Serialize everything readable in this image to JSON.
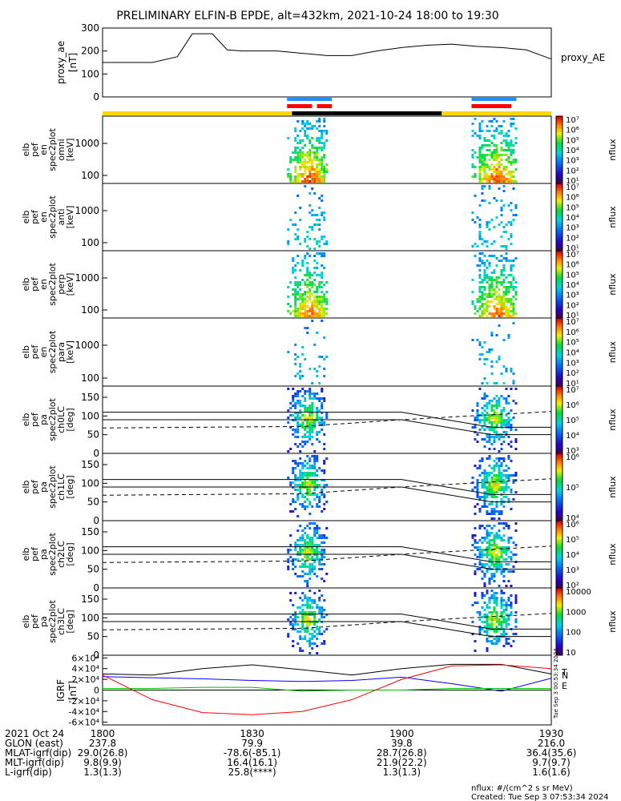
{
  "title": "PRELIMINARY ELFIN-B EPDE, alt=432km, 2021-10-24 18:00 to 19:30",
  "colors": {
    "orbit_yellow": "#f8d800",
    "orbit_black": "#000000",
    "bar_blue": "#1e90ff",
    "bar_red": "#ff0000",
    "trace_black": "#000000",
    "trace_blue": "#0000ff",
    "trace_red": "#ff0000",
    "trace_green": "#00c000"
  },
  "chart_data": [
    {
      "type": "line",
      "panel": "proxy_ae",
      "ylabel": "proxy_ae [nT]",
      "ylim": [
        0,
        300
      ],
      "yticks": [
        "0",
        "100",
        "200",
        "300"
      ],
      "grid": false,
      "series": [
        {
          "name": "proxy_AE",
          "x": [
            "18:00",
            "18:05",
            "18:10",
            "18:15",
            "18:18",
            "18:22",
            "18:25",
            "18:28",
            "18:35",
            "18:45",
            "18:50",
            "18:55",
            "19:00",
            "19:05",
            "19:10",
            "19:15",
            "19:20",
            "19:25",
            "19:30"
          ],
          "values": [
            150,
            150,
            150,
            175,
            275,
            275,
            205,
            200,
            200,
            180,
            180,
            200,
            215,
            225,
            230,
            220,
            215,
            205,
            165
          ]
        }
      ]
    },
    {
      "type": "bar",
      "panel": "status_bars",
      "rows": [
        "blue",
        "red",
        "orbit"
      ],
      "segments": {
        "blue": [
          [
            "18:37",
            "18:46"
          ],
          [
            "19:14",
            "19:23"
          ]
        ],
        "red": [
          [
            "18:37",
            "18:42"
          ],
          [
            "18:43",
            "18:46"
          ],
          [
            "19:14",
            "19:22"
          ]
        ],
        "orbit_black": [
          "18:38",
          "19:08"
        ]
      }
    },
    {
      "type": "heatmap",
      "panel": "spec_omni",
      "ylabel": "elb pef en spec2plot omni [keV]",
      "yscale": "log",
      "yticks": [
        "100",
        "1000"
      ],
      "colorbar": {
        "label": "nflux",
        "ticks": [
          "10¹",
          "10²",
          "10³",
          "10⁴",
          "10⁵",
          "10⁶",
          "10⁷"
        ]
      }
    },
    {
      "type": "heatmap",
      "panel": "spec_anti",
      "ylabel": "elb pef en spec2plot anti [keV]",
      "yscale": "log",
      "yticks": [
        "100",
        "1000"
      ],
      "colorbar": {
        "label": "nflux",
        "ticks": [
          "10¹",
          "10²",
          "10³",
          "10⁴",
          "10⁵",
          "10⁶",
          "10⁷"
        ]
      }
    },
    {
      "type": "heatmap",
      "panel": "spec_perp",
      "ylabel": "elb pef en spec2plot perp [keV]",
      "yscale": "log",
      "yticks": [
        "100",
        "1000"
      ],
      "colorbar": {
        "label": "nflux",
        "ticks": [
          "10¹",
          "10²",
          "10³",
          "10⁴",
          "10⁵",
          "10⁶",
          "10⁷"
        ]
      }
    },
    {
      "type": "heatmap",
      "panel": "spec_para",
      "ylabel": "elb pef en spec2plot para [keV]",
      "yscale": "log",
      "yticks": [
        "100",
        "1000"
      ],
      "colorbar": {
        "label": "nflux",
        "ticks": [
          "10¹",
          "10²",
          "10³",
          "10⁴",
          "10⁵",
          "10⁶",
          "10⁷"
        ]
      }
    },
    {
      "type": "heatmap",
      "panel": "pa_ch0",
      "ylabel": "elb pef pa spec2plot ch0LC [deg]",
      "ylim": [
        0,
        180
      ],
      "yticks": [
        "0",
        "50",
        "100",
        "150"
      ],
      "colorbar": {
        "label": "nflux",
        "ticks": [
          "10³",
          "10⁴",
          "10⁵",
          "10⁶",
          "10⁷"
        ]
      }
    },
    {
      "type": "heatmap",
      "panel": "pa_ch1",
      "ylabel": "elb pef pa spec2plot ch1LC [deg]",
      "ylim": [
        0,
        180
      ],
      "yticks": [
        "0",
        "50",
        "100",
        "150"
      ],
      "colorbar": {
        "label": "nflux",
        "ticks": [
          "10⁴",
          "10⁵",
          "10⁶"
        ]
      }
    },
    {
      "type": "heatmap",
      "panel": "pa_ch2",
      "ylabel": "elb pef pa spec2plot ch2LC [deg]",
      "ylim": [
        0,
        180
      ],
      "yticks": [
        "0",
        "50",
        "100",
        "150"
      ],
      "colorbar": {
        "label": "nflux",
        "ticks": [
          "10²",
          "10³",
          "10⁴",
          "10⁵",
          "10⁶"
        ]
      }
    },
    {
      "type": "heatmap",
      "panel": "pa_ch3",
      "ylabel": "elb pef pa spec2plot ch3LC [deg]",
      "ylim": [
        0,
        180
      ],
      "yticks": [
        "0",
        "50",
        "100",
        "150"
      ],
      "colorbar": {
        "label": "nflux",
        "ticks": [
          "10",
          "100",
          "1000",
          "10000"
        ]
      }
    },
    {
      "type": "line",
      "panel": "igrf",
      "ylabel": "IGRF [nT]",
      "ylim": [
        -65000,
        65000
      ],
      "yticks": [
        "-6×10⁴",
        "-4×10⁴",
        "-2×10⁴",
        "0",
        "2×10⁴",
        "4×10⁴",
        "6×10⁴"
      ],
      "x": [
        "18:00",
        "18:10",
        "18:20",
        "18:30",
        "18:40",
        "18:50",
        "19:00",
        "19:10",
        "19:20",
        "19:30"
      ],
      "series": [
        {
          "name": "T",
          "values": [
            30000,
            28000,
            40000,
            47000,
            38000,
            28000,
            40000,
            48000,
            48000,
            30000
          ]
        },
        {
          "name": "N",
          "values": [
            25000,
            23000,
            21000,
            18000,
            16000,
            18000,
            24000,
            12000,
            -2000,
            22000
          ]
        },
        {
          "name": "E",
          "values": [
            3000,
            3000,
            5000,
            5000,
            -2000,
            0,
            0,
            3000,
            3000,
            3000
          ]
        },
        {
          "values": [
            28000,
            -18000,
            -42000,
            -46000,
            -40000,
            -18000,
            20000,
            45000,
            47000,
            40000
          ]
        }
      ]
    }
  ],
  "x_axis": {
    "row_labels": [
      "2021 Oct 24",
      "GLON (east)",
      "MLAT-igrf(dip)",
      "MLT-igrf(dip)",
      "L-igrf(dip)"
    ],
    "ticks": [
      {
        "time": "1800",
        "glon": "237.8",
        "mlat": "29.0(26.8)",
        "mlt": "9.8(9.9)",
        "l": "1.3(1.3)"
      },
      {
        "time": "1830",
        "glon": "79.9",
        "mlat": "-78.6(-85.1)",
        "mlt": "16.4(16.1)",
        "l": "25.8(****)"
      },
      {
        "time": "1900",
        "glon": "39.8",
        "mlat": "28.7(26.8)",
        "mlt": "21.9(22.2)",
        "l": "1.3(1.3)"
      },
      {
        "time": "1930",
        "glon": "216.0",
        "mlat": "36.4(35.6)",
        "mlt": "9.7(9.7)",
        "l": "1.6(1.6)"
      }
    ]
  },
  "footer": {
    "units": "nflux: #/(cm^2 s sr MeV)",
    "created": "Created: Tue Sep  3 07:53:34 2024",
    "side_stamp": "Tue Sep  3 00:53:34 2024"
  }
}
